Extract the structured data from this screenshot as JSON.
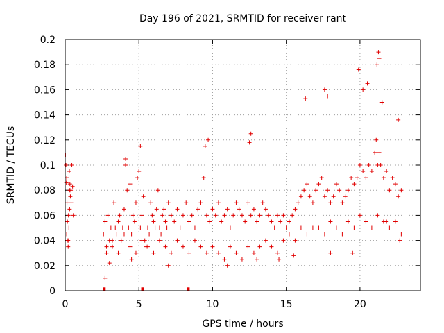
{
  "chart_data": {
    "type": "scatter",
    "title": "Day 196 of 2021, SRMTID for receiver rant",
    "xlabel": "GPS time / hours",
    "ylabel": "SRMTID / TECUs",
    "xlim": [
      0,
      24.1
    ],
    "ylim": [
      0,
      0.2
    ],
    "xticks": [
      0,
      5,
      10,
      15,
      20
    ],
    "yticks": [
      0,
      0.02,
      0.04,
      0.06,
      0.08,
      0.1,
      0.12,
      0.14,
      0.16,
      0.18,
      0.2
    ],
    "xtick_labels": [
      "0",
      "5",
      "10",
      "15",
      "20"
    ],
    "ytick_labels": [
      "0",
      "0.02",
      "0.04",
      "0.06",
      "0.08",
      "0.1",
      "0.12",
      "0.14",
      "0.16",
      "0.18",
      "0.2"
    ],
    "grid": true,
    "marker": "+",
    "color": "#e00000",
    "series": [
      {
        "name": "SRMTID",
        "x": [
          0.02,
          0.05,
          0.08,
          0.1,
          0.12,
          0.15,
          0.18,
          0.2,
          0.22,
          0.25,
          0.28,
          0.3,
          0.32,
          0.35,
          0.38,
          0.4,
          0.45,
          0.5,
          0.55,
          0.1,
          0.2,
          0.3,
          2.6,
          2.7,
          2.8,
          2.9,
          3.0,
          3.1,
          3.2,
          3.3,
          3.4,
          3.5,
          3.6,
          3.7,
          3.8,
          3.9,
          4.0,
          4.1,
          4.2,
          4.3,
          4.4,
          4.5,
          4.6,
          4.7,
          4.8,
          4.9,
          5.0,
          5.1,
          5.2,
          5.3,
          5.4,
          5.5,
          5.6,
          5.7,
          5.8,
          5.9,
          6.0,
          6.1,
          6.2,
          6.3,
          6.4,
          6.5,
          6.6,
          6.7,
          6.8,
          6.9,
          7.0,
          7.2,
          7.4,
          7.6,
          7.8,
          8.0,
          8.2,
          8.4,
          8.6,
          8.8,
          9.0,
          9.2,
          9.4,
          9.6,
          9.8,
          10.0,
          10.2,
          10.4,
          10.6,
          10.8,
          11.0,
          11.2,
          11.4,
          11.6,
          11.8,
          12.0,
          12.2,
          12.4,
          12.6,
          12.8,
          13.0,
          13.2,
          13.4,
          13.6,
          13.8,
          14.0,
          14.2,
          14.4,
          14.6,
          14.8,
          15.0,
          15.2,
          15.4,
          15.6,
          15.8,
          16.0,
          16.2,
          16.4,
          16.6,
          16.8,
          17.0,
          17.2,
          17.4,
          17.6,
          17.8,
          18.0,
          18.2,
          18.4,
          18.6,
          18.8,
          19.0,
          19.2,
          19.4,
          19.6,
          19.8,
          20.0,
          20.2,
          20.4,
          20.6,
          20.8,
          21.0,
          21.1,
          21.2,
          21.3,
          21.4,
          21.6,
          21.8,
          22.0,
          22.2,
          22.4,
          22.6,
          22.8,
          2.8,
          3.2,
          3.6,
          4.0,
          4.4,
          4.8,
          5.2,
          5.6,
          6.0,
          6.4,
          6.8,
          7.2,
          7.6,
          8.0,
          8.4,
          8.8,
          9.2,
          9.6,
          10.0,
          10.4,
          10.8,
          11.2,
          11.6,
          12.0,
          12.4,
          12.8,
          13.2,
          13.6,
          14.0,
          14.4,
          14.8,
          15.2,
          15.6,
          16.0,
          16.4,
          16.8,
          17.2,
          17.6,
          18.0,
          18.4,
          18.8,
          19.2,
          19.6,
          20.0,
          20.4,
          20.8,
          21.2,
          21.6,
          22.0,
          22.4,
          22.8,
          9.5,
          9.7,
          12.5,
          12.6,
          16.3,
          17.6,
          17.8,
          19.9,
          20.2,
          20.5,
          21.15,
          21.25,
          21.3,
          21.5,
          22.6,
          4.1,
          5.1,
          2.7,
          3.0,
          4.5,
          7.0,
          11.0,
          13.0,
          14.5,
          15.5,
          18.0,
          19.5,
          21.8,
          22.7
        ],
        "y": [
          0.108,
          0.1,
          0.086,
          0.09,
          0.07,
          0.055,
          0.04,
          0.035,
          0.06,
          0.05,
          0.095,
          0.08,
          0.085,
          0.075,
          0.08,
          0.07,
          0.1,
          0.083,
          0.06,
          0.045,
          0.04,
          0.065,
          0.045,
          0.055,
          0.03,
          0.06,
          0.04,
          0.05,
          0.035,
          0.07,
          0.05,
          0.045,
          0.055,
          0.06,
          0.04,
          0.05,
          0.065,
          0.1,
          0.08,
          0.05,
          0.085,
          0.045,
          0.06,
          0.055,
          0.07,
          0.09,
          0.095,
          0.05,
          0.06,
          0.075,
          0.04,
          0.035,
          0.05,
          0.045,
          0.07,
          0.06,
          0.055,
          0.05,
          0.065,
          0.08,
          0.05,
          0.045,
          0.06,
          0.065,
          0.055,
          0.05,
          0.07,
          0.06,
          0.055,
          0.065,
          0.05,
          0.06,
          0.07,
          0.055,
          0.06,
          0.05,
          0.065,
          0.07,
          0.09,
          0.06,
          0.055,
          0.065,
          0.06,
          0.07,
          0.055,
          0.06,
          0.065,
          0.05,
          0.06,
          0.07,
          0.065,
          0.06,
          0.055,
          0.07,
          0.06,
          0.065,
          0.055,
          0.06,
          0.07,
          0.065,
          0.06,
          0.055,
          0.05,
          0.06,
          0.055,
          0.06,
          0.05,
          0.055,
          0.06,
          0.065,
          0.07,
          0.075,
          0.08,
          0.085,
          0.075,
          0.07,
          0.08,
          0.085,
          0.09,
          0.075,
          0.08,
          0.07,
          0.075,
          0.085,
          0.08,
          0.07,
          0.075,
          0.08,
          0.09,
          0.085,
          0.09,
          0.1,
          0.095,
          0.09,
          0.1,
          0.095,
          0.11,
          0.12,
          0.1,
          0.11,
          0.1,
          0.09,
          0.095,
          0.08,
          0.09,
          0.085,
          0.075,
          0.08,
          0.035,
          0.04,
          0.03,
          0.045,
          0.035,
          0.03,
          0.04,
          0.035,
          0.03,
          0.04,
          0.035,
          0.03,
          0.04,
          0.035,
          0.03,
          0.04,
          0.035,
          0.03,
          0.035,
          0.03,
          0.025,
          0.035,
          0.03,
          0.025,
          0.035,
          0.03,
          0.035,
          0.04,
          0.035,
          0.03,
          0.04,
          0.045,
          0.04,
          0.05,
          0.045,
          0.05,
          0.05,
          0.045,
          0.055,
          0.05,
          0.045,
          0.055,
          0.05,
          0.06,
          0.055,
          0.05,
          0.06,
          0.055,
          0.05,
          0.055,
          0.045,
          0.115,
          0.12,
          0.118,
          0.125,
          0.153,
          0.16,
          0.155,
          0.176,
          0.16,
          0.165,
          0.18,
          0.19,
          0.185,
          0.15,
          0.136,
          0.105,
          0.115,
          0.01,
          0.022,
          0.025,
          0.02,
          0.02,
          0.025,
          0.025,
          0.028,
          0.03,
          0.03,
          0.055,
          0.04
        ]
      }
    ],
    "bars": [
      {
        "x": 2.65,
        "y": 0.0015
      },
      {
        "x": 5.25,
        "y": 0.0015
      },
      {
        "x": 8.35,
        "y": 0.0015
      }
    ]
  }
}
